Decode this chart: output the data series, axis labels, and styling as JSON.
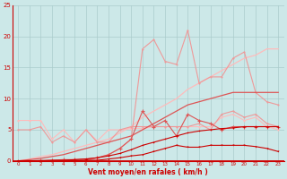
{
  "x": [
    0,
    1,
    2,
    3,
    4,
    5,
    6,
    7,
    8,
    9,
    10,
    11,
    12,
    13,
    14,
    15,
    16,
    17,
    18,
    19,
    20,
    21,
    22,
    23
  ],
  "line_pale_flat": [
    6.5,
    6.5,
    6.5,
    3.5,
    5.0,
    3.0,
    5.0,
    3.2,
    5.0,
    5.0,
    5.2,
    5.2,
    5.5,
    5.5,
    5.5,
    5.5,
    5.5,
    5.5,
    7.0,
    7.5,
    6.5,
    7.0,
    5.5,
    5.0
  ],
  "line_pale_trend": [
    0.0,
    0.3,
    0.7,
    1.0,
    1.5,
    2.0,
    2.5,
    3.0,
    3.5,
    4.5,
    5.5,
    7.0,
    8.0,
    9.0,
    10.0,
    11.5,
    12.5,
    13.5,
    14.5,
    15.5,
    16.5,
    17.0,
    18.0,
    18.0
  ],
  "line_light_spiky": [
    0.0,
    0.0,
    0.0,
    0.0,
    0.0,
    0.0,
    0.0,
    0.5,
    1.0,
    2.0,
    3.5,
    18.0,
    19.5,
    16.0,
    15.5,
    21.0,
    12.5,
    13.5,
    13.5,
    16.5,
    17.5,
    11.0,
    9.5,
    9.0
  ],
  "line_mid_flat": [
    5.0,
    5.0,
    5.5,
    3.0,
    4.0,
    3.0,
    5.0,
    3.0,
    3.0,
    5.0,
    5.5,
    5.5,
    5.5,
    5.5,
    5.5,
    5.5,
    6.0,
    5.0,
    7.5,
    8.0,
    7.0,
    7.5,
    6.0,
    5.5
  ],
  "line_mid_spiky": [
    0.0,
    0.0,
    0.1,
    0.1,
    0.2,
    0.2,
    0.3,
    0.5,
    1.0,
    2.0,
    3.5,
    8.0,
    5.5,
    6.5,
    4.0,
    7.5,
    6.5,
    6.0,
    5.0,
    5.5,
    5.5,
    5.5,
    5.5,
    5.5
  ],
  "line_mid_trend": [
    0.0,
    0.2,
    0.4,
    0.7,
    1.0,
    1.5,
    2.0,
    2.5,
    3.0,
    3.5,
    4.0,
    5.0,
    6.0,
    7.0,
    8.0,
    9.0,
    9.5,
    10.0,
    10.5,
    11.0,
    11.0,
    11.0,
    11.0,
    11.0
  ],
  "line_dark_low1": [
    0.0,
    0.0,
    0.0,
    0.1,
    0.1,
    0.2,
    0.3,
    0.5,
    0.8,
    1.2,
    1.8,
    2.5,
    3.0,
    3.5,
    4.0,
    4.5,
    4.8,
    5.0,
    5.2,
    5.3,
    5.5,
    5.5,
    5.5,
    5.5
  ],
  "line_dark_low2": [
    0.0,
    0.0,
    0.0,
    0.0,
    0.0,
    0.0,
    0.1,
    0.1,
    0.3,
    0.5,
    0.8,
    1.0,
    1.5,
    2.0,
    2.5,
    2.2,
    2.2,
    2.5,
    2.5,
    2.5,
    2.5,
    2.3,
    2.0,
    1.5
  ],
  "line_dark_flat": [
    0.0,
    0.0,
    0.0,
    0.0,
    0.0,
    0.0,
    0.0,
    0.0,
    0.0,
    0.0,
    0.0,
    0.0,
    0.0,
    0.0,
    0.0,
    0.0,
    0.0,
    0.0,
    0.0,
    0.0,
    0.0,
    0.0,
    0.0,
    0.0
  ],
  "xlim": [
    -0.5,
    23.5
  ],
  "ylim": [
    0,
    25
  ],
  "yticks": [
    0,
    5,
    10,
    15,
    20,
    25
  ],
  "xticks": [
    0,
    1,
    2,
    3,
    4,
    5,
    6,
    7,
    8,
    9,
    10,
    11,
    12,
    13,
    14,
    15,
    16,
    17,
    18,
    19,
    20,
    21,
    22,
    23
  ],
  "xlabel": "Vent moyen/en rafales ( km/h )",
  "bg_color": "#cce8e8",
  "grid_color": "#aacccc",
  "c_dark": "#cc0000",
  "c_mid": "#dd5555",
  "c_light": "#ee9999",
  "c_pale": "#ffbbbb"
}
